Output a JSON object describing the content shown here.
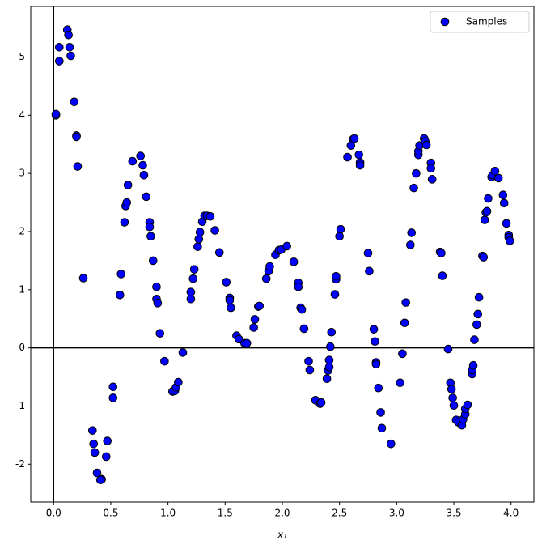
{
  "chart_data": {
    "type": "scatter",
    "x_label": "x₁",
    "xlim": [
      -0.2,
      4.2
    ],
    "ylim": [
      -2.65,
      5.87
    ],
    "xticks": [
      {
        "value": 0,
        "label": "0.0"
      },
      {
        "value": 0.5,
        "label": "0.5"
      },
      {
        "value": 1,
        "label": "1.0"
      },
      {
        "value": 1.5,
        "label": "1.5"
      },
      {
        "value": 2,
        "label": "2.0"
      },
      {
        "value": 2.5,
        "label": "2.5"
      },
      {
        "value": 3,
        "label": "3.0"
      },
      {
        "value": 3.5,
        "label": "3.5"
      },
      {
        "value": 4,
        "label": "4.0"
      }
    ],
    "yticks": [
      -2,
      -1,
      0,
      1,
      2,
      3,
      4,
      5
    ],
    "axhline": 0,
    "axvline": 0,
    "legend": "upper right",
    "x": [
      0.02,
      0.02,
      0.05,
      0.05,
      0.12,
      0.13,
      0.14,
      0.15,
      0.18,
      0.2,
      0.2,
      0.21,
      0.26,
      0.34,
      0.35,
      0.36,
      0.38,
      0.42,
      0.41,
      0.46,
      0.47,
      0.52,
      0.52,
      0.58,
      0.59,
      0.62,
      0.63,
      0.64,
      0.65,
      0.69,
      0.76,
      0.78,
      0.79,
      0.81,
      0.84,
      0.84,
      0.85,
      0.87,
      0.9,
      0.9,
      0.91,
      0.93,
      0.97,
      1.04,
      1.06,
      1.07,
      1.09,
      1.13,
      1.2,
      1.2,
      1.22,
      1.23,
      1.26,
      1.27,
      1.28,
      1.3,
      1.32,
      1.34,
      1.37,
      1.41,
      1.45,
      1.51,
      1.54,
      1.54,
      1.55,
      1.6,
      1.62,
      1.67,
      1.69,
      1.75,
      1.76,
      1.79,
      1.8,
      1.86,
      1.88,
      1.89,
      1.94,
      1.97,
      1.99,
      2.04,
      2.1,
      2.14,
      2.14,
      2.16,
      2.17,
      2.19,
      2.23,
      2.24,
      2.29,
      2.33,
      2.34,
      2.39,
      2.4,
      2.41,
      2.41,
      2.42,
      2.43,
      2.46,
      2.47,
      2.47,
      2.5,
      2.51,
      2.57,
      2.6,
      2.62,
      2.63,
      2.67,
      2.68,
      2.68,
      2.75,
      2.76,
      2.8,
      2.81,
      2.82,
      2.82,
      2.84,
      2.86,
      2.87,
      2.95,
      3.03,
      3.05,
      3.07,
      3.08,
      3.12,
      3.13,
      3.15,
      3.17,
      3.19,
      3.19,
      3.2,
      3.24,
      3.25,
      3.26,
      3.3,
      3.3,
      3.31,
      3.38,
      3.39,
      3.4,
      3.45,
      3.47,
      3.48,
      3.49,
      3.5,
      3.52,
      3.54,
      3.57,
      3.58,
      3.6,
      3.6,
      3.62,
      3.66,
      3.66,
      3.67,
      3.68,
      3.7,
      3.71,
      3.72,
      3.75,
      3.76,
      3.77,
      3.78,
      3.79,
      3.8,
      3.83,
      3.84,
      3.86,
      3.89,
      3.93,
      3.94,
      3.96,
      3.98,
      3.98,
      3.99
    ],
    "series": [
      {
        "name": "Samples",
        "color": "#0000ff",
        "values": [
          4.0,
          4.02,
          5.17,
          4.93,
          5.47,
          5.38,
          5.17,
          5.02,
          4.23,
          3.65,
          3.63,
          3.12,
          1.2,
          -1.42,
          -1.65,
          -1.8,
          -2.15,
          -2.26,
          -2.27,
          -1.87,
          -1.6,
          -0.86,
          -0.67,
          0.91,
          1.27,
          2.16,
          2.44,
          2.5,
          2.8,
          3.21,
          3.3,
          3.14,
          2.97,
          2.6,
          2.16,
          2.08,
          1.92,
          1.5,
          1.05,
          0.84,
          0.77,
          0.25,
          -0.23,
          -0.75,
          -0.74,
          -0.68,
          -0.59,
          -0.08,
          0.84,
          0.96,
          1.19,
          1.35,
          1.74,
          1.87,
          1.99,
          2.17,
          2.27,
          2.27,
          2.26,
          2.02,
          1.64,
          1.13,
          0.86,
          0.82,
          0.69,
          0.21,
          0.15,
          0.08,
          0.08,
          0.35,
          0.49,
          0.71,
          0.72,
          1.19,
          1.32,
          1.4,
          1.6,
          1.68,
          1.69,
          1.75,
          1.48,
          1.12,
          1.05,
          0.69,
          0.66,
          0.33,
          -0.23,
          -0.38,
          -0.9,
          -0.96,
          -0.94,
          -0.53,
          -0.39,
          -0.33,
          -0.21,
          0.02,
          0.27,
          0.92,
          1.18,
          1.23,
          1.92,
          2.04,
          3.28,
          3.48,
          3.59,
          3.6,
          3.32,
          3.19,
          3.14,
          1.63,
          1.32,
          0.32,
          0.11,
          -0.25,
          -0.28,
          -0.69,
          -1.11,
          -1.38,
          -1.65,
          -0.6,
          -0.1,
          0.43,
          0.78,
          1.77,
          1.98,
          2.75,
          3.0,
          3.32,
          3.38,
          3.48,
          3.6,
          3.55,
          3.49,
          3.18,
          3.09,
          2.9,
          1.65,
          1.63,
          1.24,
          -0.02,
          -0.6,
          -0.71,
          -0.86,
          -0.99,
          -1.24,
          -1.28,
          -1.33,
          -1.23,
          -1.14,
          -1.05,
          -0.98,
          -0.45,
          -0.38,
          -0.3,
          0.14,
          0.4,
          0.58,
          0.87,
          1.58,
          1.56,
          2.2,
          2.33,
          2.35,
          2.57,
          2.94,
          2.97,
          3.04,
          2.92,
          2.63,
          2.49,
          2.14,
          1.94,
          1.9,
          1.84
        ]
      }
    ]
  }
}
